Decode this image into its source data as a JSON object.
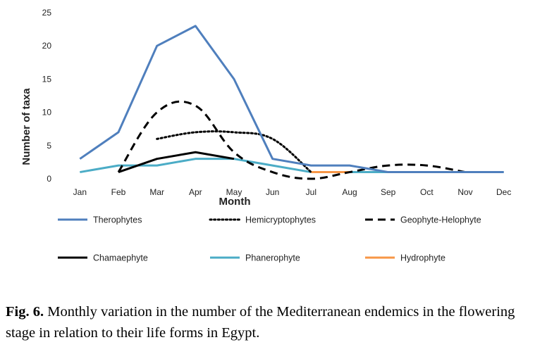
{
  "chart_data": {
    "type": "line",
    "title": "",
    "xlabel": "Month",
    "ylabel": "Number of taxa",
    "ylim": [
      0,
      25
    ],
    "yticks": [
      "0",
      "5",
      "10",
      "15",
      "20",
      "25"
    ],
    "categories": [
      "Jan",
      "Feb",
      "Mar",
      "Apr",
      "May",
      "Jun",
      "Jul",
      "Aug",
      "Sep",
      "Oct",
      "Nov",
      "Dec"
    ],
    "grid": false,
    "legend_position": "bottom",
    "series": [
      {
        "name": "Therophytes",
        "values": [
          3,
          7,
          20,
          23,
          15,
          3,
          2,
          2,
          1,
          1,
          1,
          1
        ],
        "color": "#4f7fbd",
        "style": "solid",
        "smooth": false
      },
      {
        "name": "Hemicryptophytes",
        "values": [
          null,
          null,
          6,
          7,
          7,
          6,
          1,
          null,
          null,
          null,
          null,
          null
        ],
        "color": "#000000",
        "style": "dotted",
        "smooth": true
      },
      {
        "name": "Geophyte-Helophyte",
        "values": [
          null,
          1,
          10,
          11,
          4,
          1,
          0,
          1,
          2,
          2,
          1,
          null
        ],
        "color": "#000000",
        "style": "dashed",
        "smooth": true
      },
      {
        "name": "Chamaephyte",
        "values": [
          null,
          1,
          3,
          4,
          3,
          null,
          null,
          null,
          null,
          null,
          null,
          null
        ],
        "color": "#000000",
        "style": "solid",
        "smooth": false
      },
      {
        "name": "Phanerophyte",
        "values": [
          1,
          2,
          2,
          3,
          3,
          2,
          1,
          1,
          1,
          1,
          1,
          1
        ],
        "color": "#4bacc6",
        "style": "solid",
        "smooth": false
      },
      {
        "name": "Hydrophyte",
        "values": [
          null,
          null,
          null,
          null,
          null,
          null,
          1,
          1,
          null,
          null,
          null,
          null
        ],
        "color": "#f79646",
        "style": "solid",
        "smooth": false
      }
    ]
  },
  "caption": {
    "label": "Fig. 6.",
    "text": " Monthly variation in the number of the Mediterranean endemics in the flowering stage in relation to their life forms in Egypt."
  }
}
